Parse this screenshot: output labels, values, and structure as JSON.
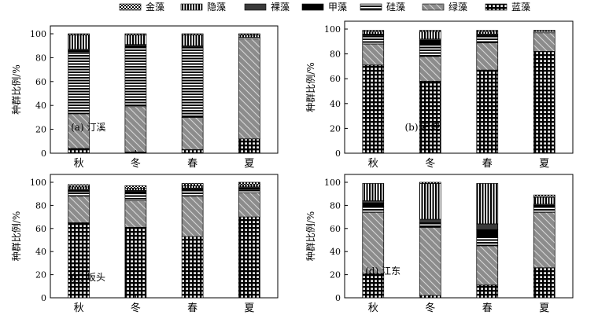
{
  "chart_data": {
    "type": "bar",
    "stacked": true,
    "categories": [
      "秋",
      "冬",
      "春",
      "夏"
    ],
    "ylabel": "种群比例/%",
    "ylim": [
      0,
      100
    ],
    "yticks": [
      0,
      20,
      40,
      60,
      80,
      100
    ],
    "grid": false,
    "legend_placement": "top",
    "legend": [
      {
        "name": "金藻",
        "key": "jin"
      },
      {
        "name": "隐藻",
        "key": "yin"
      },
      {
        "name": "裸藻",
        "key": "luo"
      },
      {
        "name": "甲藻",
        "key": "jia"
      },
      {
        "name": "硅藻",
        "key": "gui"
      },
      {
        "name": "绿藻",
        "key": "lv"
      },
      {
        "name": "蓝藻",
        "key": "lan"
      }
    ],
    "stack_order": [
      "lan",
      "lv",
      "gui",
      "jia",
      "luo",
      "yin",
      "jin"
    ],
    "panels": [
      {
        "label": "(a) 汀溪",
        "label_pos": "lower-left",
        "series": {
          "lan": [
            4,
            1,
            3,
            12
          ],
          "lv": [
            29,
            38,
            27,
            84
          ],
          "gui": [
            52,
            50,
            58,
            1
          ],
          "jia": [
            1,
            1,
            1,
            0
          ],
          "luo": [
            1,
            1,
            1,
            0
          ],
          "yin": [
            12,
            8,
            9,
            2
          ],
          "jin": [
            1,
            1,
            1,
            1
          ]
        }
      },
      {
        "label": "(b) 石兜",
        "label_pos": "lower-right",
        "series": {
          "lan": [
            71,
            58,
            67,
            82
          ],
          "lv": [
            17,
            20,
            22,
            15
          ],
          "gui": [
            7,
            10,
            5,
            1
          ],
          "jia": [
            1,
            3,
            1,
            0
          ],
          "luo": [
            0,
            1,
            1,
            0
          ],
          "yin": [
            2,
            6,
            2,
            1
          ],
          "jin": [
            1,
            1,
            1,
            0
          ]
        }
      },
      {
        "label": "(c) 坂头",
        "label_pos": "lower-left",
        "series": {
          "lan": [
            65,
            61,
            53,
            70
          ],
          "lv": [
            23,
            23,
            35,
            21
          ],
          "gui": [
            4,
            6,
            5,
            3
          ],
          "jia": [
            1,
            2,
            1,
            1
          ],
          "luo": [
            1,
            1,
            1,
            1
          ],
          "yin": [
            2,
            2,
            2,
            2
          ],
          "jin": [
            2,
            2,
            2,
            2
          ]
        }
      },
      {
        "label": "(d) 江东",
        "label_pos": "lower-left",
        "series": {
          "lan": [
            21,
            2,
            11,
            26
          ],
          "lv": [
            53,
            59,
            34,
            48
          ],
          "gui": [
            5,
            3,
            7,
            5
          ],
          "jia": [
            3,
            1,
            7,
            1
          ],
          "luo": [
            2,
            3,
            5,
            1
          ],
          "yin": [
            15,
            31,
            35,
            6
          ],
          "jin": [
            0,
            1,
            0,
            2
          ]
        }
      }
    ]
  }
}
